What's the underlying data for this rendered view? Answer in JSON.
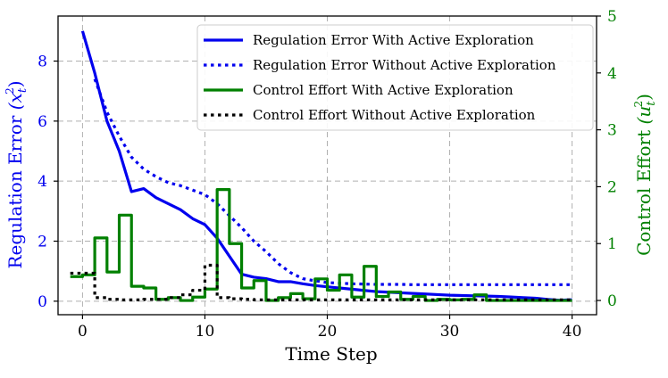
{
  "chart_data": {
    "type": "line",
    "xlabel": "Time Step",
    "ylabel_left": "Regulation Error",
    "ylabel_left_math": "(x",
    "ylabel_left_sub": "t",
    "ylabel_left_sup": "2",
    "ylabel_right": "Control Effort",
    "ylabel_right_math": "(u",
    "ylabel_right_sub": "t",
    "ylabel_right_sup": "2",
    "xlim": [
      -2,
      42
    ],
    "ylim_left": [
      -0.45,
      9.5
    ],
    "ylim_right": [
      -0.25,
      5.0
    ],
    "xticks": [
      0,
      10,
      20,
      30,
      40
    ],
    "yticks_left": [
      0,
      2,
      4,
      6,
      8
    ],
    "yticks_right": [
      0,
      1,
      2,
      3,
      4,
      5
    ],
    "grid": true,
    "legend_position": "top-right",
    "colors": {
      "error_with": "#0000ee",
      "error_without": "#0000ee",
      "effort_with": "#008000",
      "effort_without": "#000000",
      "left_axis_text": "#0000ee",
      "right_axis_text": "#008000"
    },
    "series": [
      {
        "name": "Regulation Error With Active Exploration",
        "axis": "left",
        "style": "solid",
        "x": [
          0,
          1,
          2,
          3,
          4,
          5,
          6,
          7,
          8,
          9,
          10,
          11,
          12,
          13,
          14,
          15,
          16,
          17,
          18,
          19,
          20,
          21,
          22,
          23,
          24,
          25,
          26,
          27,
          28,
          29,
          30,
          31,
          32,
          33,
          34,
          35,
          36,
          37,
          38,
          39,
          40
        ],
        "values": [
          9.0,
          7.6,
          6.0,
          5.0,
          3.65,
          3.75,
          3.45,
          3.25,
          3.05,
          2.75,
          2.55,
          2.1,
          1.5,
          0.9,
          0.8,
          0.75,
          0.65,
          0.65,
          0.58,
          0.52,
          0.48,
          0.44,
          0.4,
          0.36,
          0.32,
          0.3,
          0.28,
          0.26,
          0.24,
          0.22,
          0.2,
          0.19,
          0.18,
          0.17,
          0.16,
          0.14,
          0.12,
          0.1,
          0.06,
          0.03,
          0.05
        ]
      },
      {
        "name": "Regulation Error Without Active Exploration",
        "axis": "left",
        "style": "dotted",
        "x": [
          1,
          2,
          3,
          4,
          5,
          6,
          7,
          8,
          9,
          10,
          11,
          12,
          13,
          14,
          15,
          16,
          17,
          18,
          19,
          20,
          21,
          22,
          23,
          24,
          25,
          26,
          27,
          28,
          29,
          30,
          31,
          32,
          33,
          34,
          35,
          36,
          37,
          38,
          39,
          40
        ],
        "values": [
          7.4,
          6.3,
          5.5,
          4.8,
          4.4,
          4.15,
          3.95,
          3.85,
          3.7,
          3.55,
          3.25,
          2.85,
          2.45,
          2.0,
          1.65,
          1.25,
          0.95,
          0.75,
          0.68,
          0.62,
          0.6,
          0.58,
          0.57,
          0.56,
          0.56,
          0.56,
          0.55,
          0.55,
          0.55,
          0.55,
          0.55,
          0.55,
          0.55,
          0.55,
          0.55,
          0.55,
          0.55,
          0.55,
          0.55,
          0.55
        ]
      },
      {
        "name": "Control Effort With Active Exploration",
        "axis": "right",
        "style": "step",
        "x": [
          -1,
          0,
          1,
          2,
          3,
          4,
          5,
          6,
          7,
          8,
          9,
          10,
          11,
          12,
          13,
          14,
          15,
          16,
          17,
          18,
          19,
          20,
          21,
          22,
          23,
          24,
          25,
          26,
          27,
          28,
          29,
          30,
          31,
          32,
          33,
          34,
          35,
          36,
          37,
          38,
          39
        ],
        "values": [
          0.42,
          0.45,
          1.1,
          0.5,
          1.5,
          0.25,
          0.22,
          0.02,
          0.05,
          0.0,
          0.06,
          0.2,
          1.95,
          1.0,
          0.22,
          0.35,
          0.0,
          0.05,
          0.12,
          0.03,
          0.38,
          0.18,
          0.45,
          0.06,
          0.6,
          0.07,
          0.15,
          0.02,
          0.07,
          0.0,
          0.02,
          0.01,
          0.02,
          0.1,
          0.0,
          0.0,
          0.0,
          0.0,
          0.0,
          0.0,
          0.0
        ]
      },
      {
        "name": "Control Effort Without Active Exploration",
        "axis": "right",
        "style": "dotted-step",
        "x": [
          -1,
          0,
          1,
          2,
          3,
          4,
          5,
          6,
          7,
          8,
          9,
          10,
          11,
          12,
          13,
          14,
          15,
          16,
          17,
          18,
          19,
          20,
          21,
          22,
          23,
          24,
          25,
          26,
          27,
          28,
          29,
          30,
          31,
          32,
          33,
          34,
          35,
          36,
          37,
          38,
          39
        ],
        "values": [
          0.48,
          0.48,
          0.05,
          0.02,
          0.01,
          0.01,
          0.02,
          0.02,
          0.05,
          0.1,
          0.18,
          0.62,
          0.05,
          0.03,
          0.02,
          0.01,
          0.01,
          0.01,
          0.01,
          0.01,
          0.01,
          0.01,
          0.01,
          0.01,
          0.01,
          0.01,
          0.01,
          0.01,
          0.01,
          0.01,
          0.01,
          0.01,
          0.01,
          0.01,
          0.01,
          0.01,
          0.01,
          0.01,
          0.01,
          0.01,
          0.01
        ]
      }
    ]
  }
}
